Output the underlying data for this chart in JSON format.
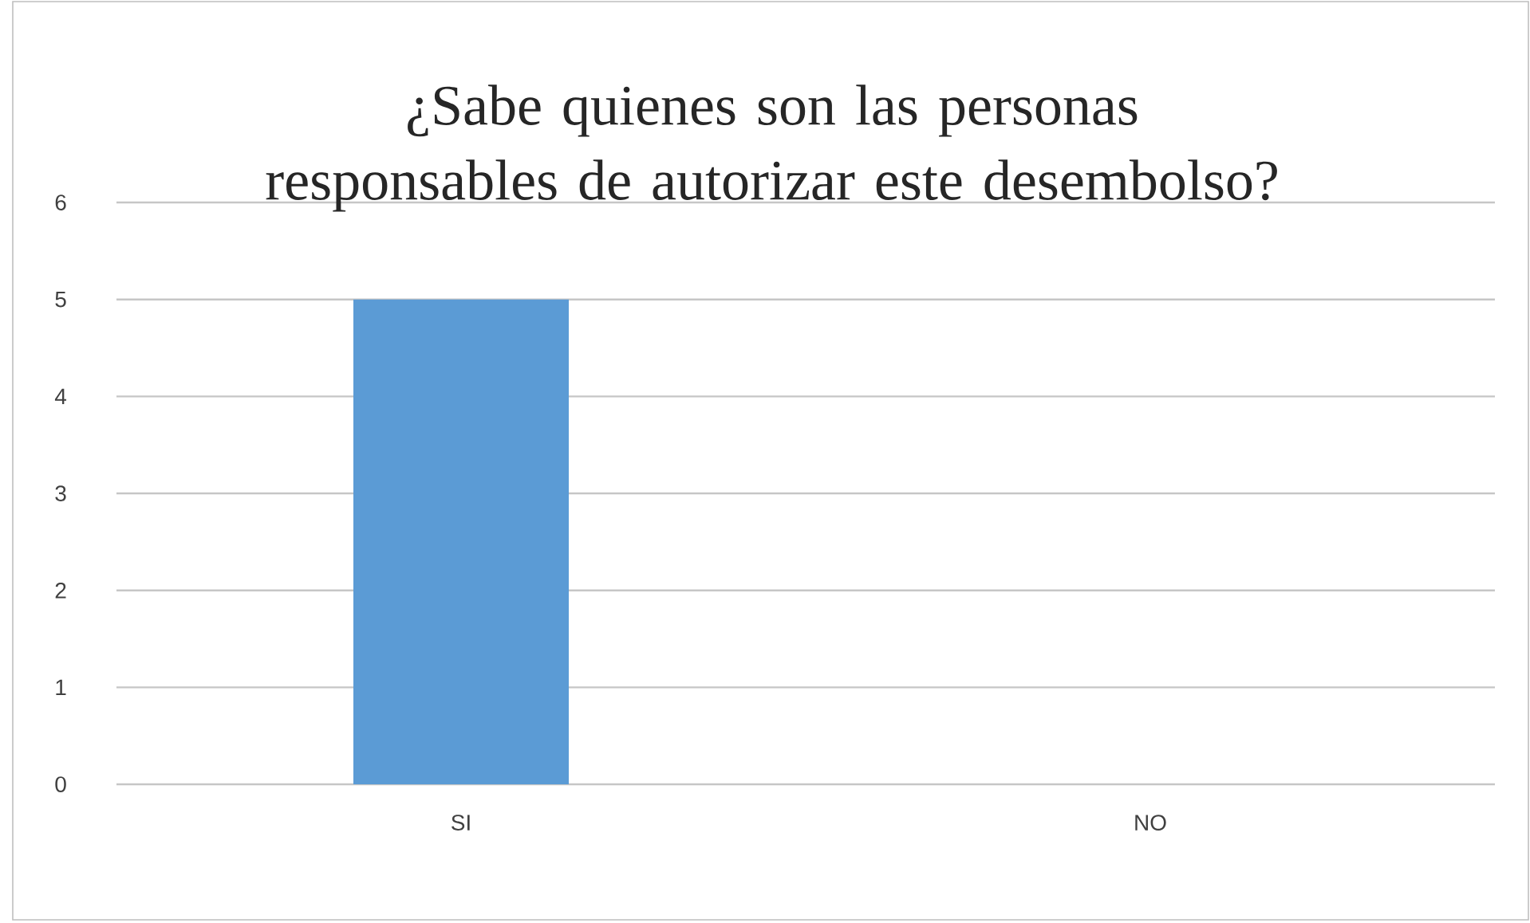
{
  "chart_data": {
    "type": "bar",
    "title": "¿Sabe quienes son las personas responsables de autorizar este desembolso?",
    "categories": [
      "SI",
      "NO"
    ],
    "values": [
      5,
      0
    ],
    "color": "#5b9bd5",
    "ylim": [
      0,
      6
    ],
    "yticks": [
      0,
      1,
      2,
      3,
      4,
      5,
      6
    ],
    "grid": "y"
  }
}
